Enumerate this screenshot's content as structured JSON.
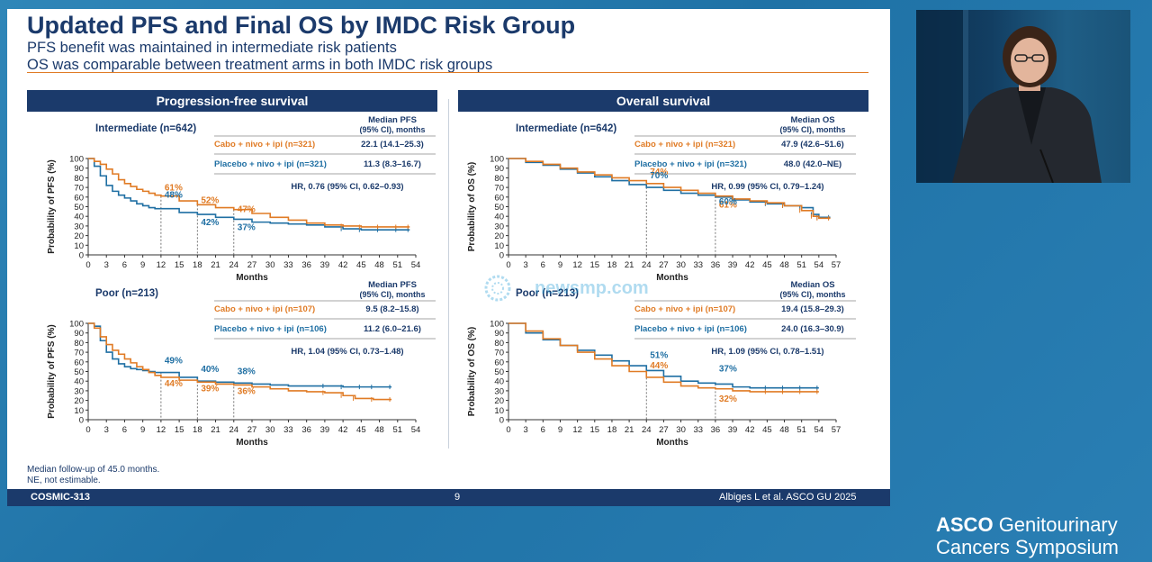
{
  "slide": {
    "title": "Updated PFS and Final OS by IMDC Risk Group",
    "subtitle_lines": [
      "PFS benefit was maintained in intermediate risk patients",
      "OS was comparable between treatment arms in both IMDC risk groups"
    ],
    "sections": [
      "Progression-free survival",
      "Overall survival"
    ],
    "footnotes": [
      "Median follow-up of 45.0 months.",
      "NE, not estimable."
    ],
    "footer": {
      "left": "COSMIC-313",
      "center": "9",
      "right": "Albiges L et al. ASCO GU 2025"
    }
  },
  "colors": {
    "cabo": "#e07b25",
    "placebo": "#1f6fa3",
    "navy": "#1b3a6b"
  },
  "watermark": "newsmp.com",
  "branding": {
    "line1_bold": "ASCO",
    "line1_rest": "Genitourinary",
    "line2": "Cancers Symposium"
  },
  "chart_data": [
    {
      "id": "pfs-int",
      "type": "line",
      "group_title": "Intermediate (n=642)",
      "ylabel": "Probability of PFS (%)",
      "xlabel": "Months",
      "xticks": [
        0,
        3,
        6,
        9,
        12,
        15,
        18,
        21,
        24,
        27,
        30,
        33,
        36,
        39,
        42,
        45,
        48,
        51,
        54
      ],
      "xlim": [
        0,
        54
      ],
      "yticks": [
        0,
        10,
        20,
        30,
        40,
        50,
        60,
        70,
        80,
        90,
        100
      ],
      "ylim": [
        0,
        100
      ],
      "table_header": [
        "Median PFS",
        "(95% CI), months"
      ],
      "rows": [
        {
          "label": "Cabo + nivo + ipi (n=321)",
          "value": "22.1 (14.1–25.3)"
        },
        {
          "label": "Placebo + nivo + ipi (n=321)",
          "value": "11.3 (8.3–16.7)"
        }
      ],
      "hr": "HR, 0.76 (95% CI, 0.62–0.93)",
      "vlines": [
        12,
        18,
        24
      ],
      "annotations": [
        {
          "x": 12,
          "y": 61,
          "text": "61%",
          "series": 0
        },
        {
          "x": 18,
          "y": 52,
          "text": "52%",
          "series": 0
        },
        {
          "x": 24,
          "y": 47,
          "text": "47%",
          "series": 0
        },
        {
          "x": 12,
          "y": 48,
          "text": "48%",
          "series": 1
        },
        {
          "x": 18,
          "y": 42,
          "text": "42%",
          "series": 1
        },
        {
          "x": 24,
          "y": 37,
          "text": "37%",
          "series": 1
        }
      ],
      "series": [
        {
          "name": "Cabo + nivo + ipi",
          "x": [
            0,
            1,
            2,
            3,
            4,
            5,
            6,
            7,
            8,
            9,
            10,
            11,
            12,
            15,
            18,
            21,
            24,
            27,
            30,
            33,
            36,
            39,
            42,
            45,
            48,
            51,
            53
          ],
          "y": [
            100,
            97,
            94,
            89,
            84,
            78,
            74,
            71,
            68,
            66,
            64,
            62,
            61,
            56,
            52,
            49,
            47,
            43,
            39,
            36,
            33,
            31,
            30,
            29,
            29,
            29,
            29
          ]
        },
        {
          "name": "Placebo + nivo + ipi",
          "x": [
            0,
            1,
            2,
            3,
            4,
            5,
            6,
            7,
            8,
            9,
            10,
            11,
            12,
            15,
            18,
            21,
            24,
            27,
            30,
            33,
            36,
            39,
            42,
            45,
            48,
            51,
            53
          ],
          "y": [
            100,
            92,
            82,
            72,
            66,
            62,
            59,
            56,
            53,
            51,
            49,
            48,
            48,
            44,
            42,
            39,
            37,
            34,
            33,
            32,
            31,
            29,
            27,
            26,
            26,
            26,
            26
          ]
        }
      ]
    },
    {
      "id": "os-int",
      "type": "line",
      "group_title": "Intermediate (n=642)",
      "ylabel": "Probability of OS (%)",
      "xlabel": "Months",
      "xticks": [
        0,
        3,
        6,
        9,
        12,
        15,
        18,
        21,
        24,
        27,
        30,
        33,
        36,
        39,
        42,
        45,
        48,
        51,
        54,
        57
      ],
      "xlim": [
        0,
        57
      ],
      "yticks": [
        0,
        10,
        20,
        30,
        40,
        50,
        60,
        70,
        80,
        90,
        100
      ],
      "ylim": [
        0,
        100
      ],
      "table_header": [
        "Median OS",
        "(95% CI), months"
      ],
      "rows": [
        {
          "label": "Cabo + nivo + ipi (n=321)",
          "value": "47.9 (42.6–51.6)"
        },
        {
          "label": "Placebo + nivo + ipi (n=321)",
          "value": "48.0 (42.0–NE)"
        }
      ],
      "hr": "HR, 0.99 (95% CI, 0.79–1.24)",
      "vlines": [
        24,
        36
      ],
      "annotations": [
        {
          "x": 24,
          "y": 74,
          "text": "74%",
          "series": 0
        },
        {
          "x": 36,
          "y": 61,
          "text": "61%",
          "series": 0
        },
        {
          "x": 24,
          "y": 70,
          "text": "70%",
          "series": 1
        },
        {
          "x": 36,
          "y": 60,
          "text": "60%",
          "series": 1
        }
      ],
      "series": [
        {
          "name": "Cabo + nivo + ipi",
          "x": [
            0,
            3,
            6,
            9,
            12,
            15,
            18,
            21,
            24,
            27,
            30,
            33,
            36,
            39,
            42,
            45,
            48,
            51,
            53,
            54,
            56
          ],
          "y": [
            100,
            97,
            94,
            90,
            86,
            83,
            80,
            77,
            74,
            70,
            67,
            64,
            61,
            58,
            56,
            54,
            51,
            46,
            40,
            38,
            38
          ]
        },
        {
          "name": "Placebo + nivo + ipi",
          "x": [
            0,
            3,
            6,
            9,
            12,
            15,
            18,
            21,
            24,
            27,
            30,
            33,
            36,
            39,
            42,
            45,
            48,
            51,
            53,
            54,
            56
          ],
          "y": [
            100,
            96,
            93,
            89,
            85,
            81,
            77,
            73,
            70,
            67,
            64,
            62,
            60,
            57,
            55,
            53,
            51,
            49,
            42,
            39,
            39
          ]
        }
      ]
    },
    {
      "id": "pfs-poor",
      "type": "line",
      "group_title": "Poor (n=213)",
      "ylabel": "Probability of PFS (%)",
      "xlabel": "Months",
      "xticks": [
        0,
        3,
        6,
        9,
        12,
        15,
        18,
        21,
        24,
        27,
        30,
        33,
        36,
        39,
        42,
        45,
        48,
        51,
        54
      ],
      "xlim": [
        0,
        54
      ],
      "yticks": [
        0,
        10,
        20,
        30,
        40,
        50,
        60,
        70,
        80,
        90,
        100
      ],
      "ylim": [
        0,
        100
      ],
      "table_header": [
        "Median PFS",
        "(95% CI), months"
      ],
      "rows": [
        {
          "label": "Cabo + nivo + ipi (n=107)",
          "value": "9.5 (8.2–15.8)"
        },
        {
          "label": "Placebo + nivo + ipi (n=106)",
          "value": "11.2 (6.0–21.6)"
        }
      ],
      "hr": "HR, 1.04 (95% CI, 0.73–1.48)",
      "vlines": [
        12,
        18,
        24
      ],
      "annotations": [
        {
          "x": 12,
          "y": 44,
          "text": "44%",
          "series": 0
        },
        {
          "x": 18,
          "y": 39,
          "text": "39%",
          "series": 0
        },
        {
          "x": 24,
          "y": 36,
          "text": "36%",
          "series": 0
        },
        {
          "x": 12,
          "y": 49,
          "text": "49%",
          "series": 1
        },
        {
          "x": 18,
          "y": 40,
          "text": "40%",
          "series": 1
        },
        {
          "x": 24,
          "y": 38,
          "text": "38%",
          "series": 1
        }
      ],
      "series": [
        {
          "name": "Cabo + nivo + ipi",
          "x": [
            0,
            1,
            2,
            3,
            4,
            5,
            6,
            7,
            8,
            9,
            10,
            11,
            12,
            15,
            18,
            21,
            24,
            27,
            30,
            33,
            36,
            39,
            42,
            44,
            47,
            50
          ],
          "y": [
            100,
            95,
            86,
            78,
            72,
            68,
            63,
            59,
            55,
            52,
            49,
            46,
            44,
            41,
            39,
            37,
            36,
            34,
            32,
            30,
            29,
            28,
            25,
            22,
            21,
            21
          ]
        },
        {
          "name": "Placebo + nivo + ipi",
          "x": [
            0,
            1,
            2,
            3,
            4,
            5,
            6,
            7,
            8,
            9,
            10,
            11,
            12,
            15,
            18,
            21,
            24,
            27,
            30,
            33,
            36,
            39,
            42,
            45,
            47,
            50
          ],
          "y": [
            100,
            97,
            82,
            70,
            63,
            58,
            55,
            53,
            52,
            51,
            50,
            49,
            49,
            44,
            40,
            39,
            38,
            37,
            36,
            35,
            35,
            35,
            34,
            34,
            34,
            34
          ]
        }
      ]
    },
    {
      "id": "os-poor",
      "type": "line",
      "group_title": "Poor (n=213)",
      "ylabel": "Probability of OS (%)",
      "xlabel": "Months",
      "xticks": [
        0,
        3,
        6,
        9,
        12,
        15,
        18,
        21,
        24,
        27,
        30,
        33,
        36,
        39,
        42,
        45,
        48,
        51,
        54,
        57
      ],
      "xlim": [
        0,
        57
      ],
      "yticks": [
        0,
        10,
        20,
        30,
        40,
        50,
        60,
        70,
        80,
        90,
        100
      ],
      "ylim": [
        0,
        100
      ],
      "table_header": [
        "Median OS",
        "(95% CI), months"
      ],
      "rows": [
        {
          "label": "Cabo + nivo + ipi (n=107)",
          "value": "19.4 (15.8–29.3)"
        },
        {
          "label": "Placebo + nivo + ipi (n=106)",
          "value": "24.0 (16.3–30.9)"
        }
      ],
      "hr": "HR, 1.09 (95% CI, 0.78–1.51)",
      "vlines": [
        24,
        36
      ],
      "annotations": [
        {
          "x": 24,
          "y": 44,
          "text": "44%",
          "series": 0
        },
        {
          "x": 36,
          "y": 32,
          "text": "32%",
          "series": 0
        },
        {
          "x": 24,
          "y": 51,
          "text": "51%",
          "series": 1
        },
        {
          "x": 36,
          "y": 37,
          "text": "37%",
          "series": 1
        }
      ],
      "series": [
        {
          "name": "Cabo + nivo + ipi",
          "x": [
            0,
            3,
            6,
            9,
            12,
            15,
            18,
            21,
            24,
            27,
            30,
            33,
            36,
            39,
            42,
            45,
            48,
            51,
            54
          ],
          "y": [
            100,
            92,
            84,
            77,
            70,
            63,
            56,
            50,
            44,
            39,
            35,
            33,
            32,
            30,
            29,
            29,
            29,
            29,
            29
          ]
        },
        {
          "name": "Placebo + nivo + ipi",
          "x": [
            0,
            3,
            6,
            9,
            12,
            15,
            18,
            21,
            24,
            27,
            30,
            33,
            36,
            39,
            42,
            45,
            48,
            51,
            54
          ],
          "y": [
            100,
            90,
            83,
            77,
            72,
            67,
            61,
            56,
            51,
            45,
            40,
            38,
            37,
            34,
            33,
            33,
            33,
            33,
            33
          ]
        }
      ]
    }
  ]
}
